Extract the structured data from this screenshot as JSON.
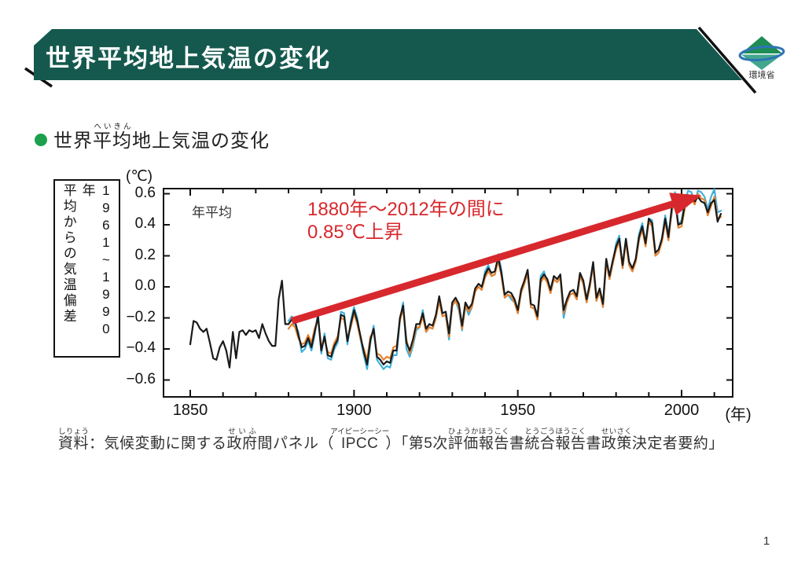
{
  "page_number": "1",
  "banner": {
    "title": "世界平均地上気温の変化"
  },
  "logo": {
    "label": "環境省"
  },
  "heading": {
    "segments": [
      {
        "t": "世界"
      },
      {
        "t": "平均",
        "r": "へいきん"
      },
      {
        "t": "地上気温の変化"
      }
    ]
  },
  "chart": {
    "unit_label": "(℃)",
    "period_label": "1961~1990年",
    "axis_label": "平均からの気温偏差",
    "inner_label": "年平均",
    "x_unit": "(年)",
    "y_tick_labels": [
      "0.6",
      "0.4",
      "0.2",
      "0.0",
      "−0.2",
      "−0.4",
      "−0.6"
    ],
    "x_tick_labels": [
      "1850",
      "1900",
      "1950",
      "2000"
    ]
  },
  "chart_data": {
    "type": "line",
    "title": "世界平均地上気温の変化",
    "xlabel": "(年)",
    "ylabel": "1961~1990年平均からの気温偏差 (℃)",
    "x_range": [
      1842,
      2015
    ],
    "y_range": [
      -0.7,
      0.65
    ],
    "x_major_ticks": [
      1850,
      1900,
      1950,
      2000
    ],
    "x_minor_tick_step": 10,
    "y_ticks": [
      0.6,
      0.4,
      0.2,
      0.0,
      -0.2,
      -0.4,
      -0.6
    ],
    "grid": false,
    "legend": false,
    "annotation": {
      "line1": "1880年〜2012年の間に",
      "line2": "0.85℃上昇"
    },
    "arrow": {
      "from": [
        1881,
        -0.22
      ],
      "to": [
        2006,
        0.59
      ]
    },
    "series": [
      {
        "name": "annual-mean-dataset-black",
        "color": "#1a1a1a",
        "start_year": 1850,
        "values": [
          -0.37,
          -0.22,
          -0.23,
          -0.27,
          -0.29,
          -0.27,
          -0.36,
          -0.46,
          -0.47,
          -0.39,
          -0.35,
          -0.41,
          -0.52,
          -0.29,
          -0.46,
          -0.29,
          -0.28,
          -0.31,
          -0.28,
          -0.29,
          -0.28,
          -0.33,
          -0.24,
          -0.3,
          -0.35,
          -0.38,
          -0.38,
          -0.08,
          0.04,
          -0.24,
          -0.24,
          -0.21,
          -0.22,
          -0.31,
          -0.39,
          -0.38,
          -0.33,
          -0.39,
          -0.29,
          -0.19,
          -0.41,
          -0.32,
          -0.44,
          -0.45,
          -0.38,
          -0.34,
          -0.18,
          -0.19,
          -0.35,
          -0.24,
          -0.15,
          -0.22,
          -0.32,
          -0.42,
          -0.5,
          -0.34,
          -0.27,
          -0.45,
          -0.47,
          -0.5,
          -0.48,
          -0.49,
          -0.41,
          -0.41,
          -0.2,
          -0.12,
          -0.36,
          -0.41,
          -0.34,
          -0.24,
          -0.24,
          -0.17,
          -0.27,
          -0.24,
          -0.25,
          -0.18,
          -0.06,
          -0.17,
          -0.16,
          -0.3,
          -0.1,
          -0.07,
          -0.11,
          -0.25,
          -0.1,
          -0.14,
          -0.11,
          -0.01,
          0.02,
          0.0,
          0.08,
          0.12,
          0.09,
          0.1,
          0.19,
          0.09,
          -0.05,
          -0.03,
          -0.04,
          -0.08,
          -0.15,
          -0.02,
          0.04,
          0.11,
          -0.11,
          -0.12,
          -0.19,
          0.05,
          0.08,
          0.05,
          -0.02,
          0.07,
          0.05,
          0.08,
          -0.15,
          -0.08,
          -0.03,
          -0.02,
          -0.06,
          0.09,
          0.04,
          -0.08,
          0.02,
          0.16,
          -0.07,
          -0.01,
          -0.11,
          0.18,
          0.07,
          0.17,
          0.26,
          0.31,
          0.14,
          0.31,
          0.16,
          0.12,
          0.18,
          0.32,
          0.39,
          0.28,
          0.44,
          0.41,
          0.22,
          0.24,
          0.31,
          0.44,
          0.32,
          0.51,
          0.55,
          0.4,
          0.41,
          0.53,
          0.58,
          0.59,
          0.55,
          0.58,
          0.55,
          0.54,
          0.48,
          0.54,
          0.56,
          0.42,
          0.47
        ]
      },
      {
        "name": "annual-mean-dataset-orange",
        "color": "#e8822f",
        "start_year": 1880,
        "values": [
          -0.27,
          -0.24,
          -0.26,
          -0.33,
          -0.37,
          -0.36,
          -0.31,
          -0.36,
          -0.27,
          -0.21,
          -0.38,
          -0.34,
          -0.42,
          -0.43,
          -0.36,
          -0.32,
          -0.2,
          -0.21,
          -0.33,
          -0.26,
          -0.17,
          -0.24,
          -0.34,
          -0.4,
          -0.47,
          -0.32,
          -0.29,
          -0.43,
          -0.44,
          -0.47,
          -0.45,
          -0.46,
          -0.39,
          -0.38,
          -0.22,
          -0.14,
          -0.34,
          -0.43,
          -0.36,
          -0.26,
          -0.26,
          -0.19,
          -0.29,
          -0.26,
          -0.27,
          -0.2,
          -0.09,
          -0.19,
          -0.18,
          -0.32,
          -0.12,
          -0.09,
          -0.13,
          -0.27,
          -0.12,
          -0.16,
          -0.13,
          -0.03,
          0.0,
          -0.02,
          0.06,
          0.1,
          0.07,
          0.08,
          0.17,
          0.07,
          -0.07,
          -0.05,
          -0.06,
          -0.1,
          -0.17,
          -0.04,
          0.02,
          0.09,
          -0.13,
          -0.14,
          -0.21,
          0.03,
          0.06,
          0.03,
          -0.04,
          0.05,
          0.03,
          0.06,
          -0.17,
          -0.1,
          -0.05,
          -0.04,
          -0.08,
          0.07,
          0.02,
          -0.1,
          0.0,
          0.14,
          -0.09,
          -0.03,
          -0.13,
          0.16,
          0.05,
          0.15,
          0.24,
          0.29,
          0.12,
          0.29,
          0.14,
          0.1,
          0.16,
          0.3,
          0.37,
          0.26,
          0.42,
          0.39,
          0.2,
          0.22,
          0.29,
          0.42,
          0.3,
          0.49,
          0.57,
          0.38,
          0.39,
          0.51,
          0.56,
          0.57,
          0.53,
          0.6,
          0.57,
          0.56,
          0.46,
          0.52,
          0.58,
          0.44,
          0.45
        ]
      },
      {
        "name": "annual-mean-dataset-cyan",
        "color": "#41b1dc",
        "start_year": 1880,
        "values": [
          -0.22,
          -0.19,
          -0.24,
          -0.29,
          -0.42,
          -0.4,
          -0.35,
          -0.41,
          -0.31,
          -0.17,
          -0.43,
          -0.3,
          -0.46,
          -0.47,
          -0.4,
          -0.36,
          -0.16,
          -0.17,
          -0.37,
          -0.22,
          -0.13,
          -0.2,
          -0.34,
          -0.44,
          -0.53,
          -0.36,
          -0.25,
          -0.47,
          -0.5,
          -0.53,
          -0.51,
          -0.52,
          -0.44,
          -0.44,
          -0.22,
          -0.1,
          -0.4,
          -0.45,
          -0.38,
          -0.28,
          -0.26,
          -0.15,
          -0.29,
          -0.26,
          -0.27,
          -0.2,
          -0.08,
          -0.19,
          -0.18,
          -0.34,
          -0.12,
          -0.09,
          -0.15,
          -0.28,
          -0.12,
          -0.18,
          -0.13,
          -0.01,
          0.0,
          -0.02,
          0.1,
          0.14,
          0.07,
          0.08,
          0.21,
          0.11,
          -0.07,
          -0.05,
          -0.08,
          -0.1,
          -0.17,
          -0.04,
          0.02,
          0.09,
          -0.13,
          -0.14,
          -0.21,
          0.07,
          0.1,
          0.03,
          -0.04,
          0.05,
          0.03,
          0.06,
          -0.2,
          -0.1,
          -0.05,
          -0.04,
          -0.08,
          0.07,
          0.02,
          -0.1,
          0.0,
          0.14,
          -0.09,
          -0.03,
          -0.13,
          0.18,
          0.05,
          0.15,
          0.28,
          0.33,
          0.12,
          0.31,
          0.14,
          0.1,
          0.18,
          0.34,
          0.41,
          0.28,
          0.44,
          0.43,
          0.22,
          0.24,
          0.31,
          0.46,
          0.34,
          0.47,
          0.61,
          0.4,
          0.43,
          0.55,
          0.62,
          0.61,
          0.54,
          0.62,
          0.61,
          0.58,
          0.5,
          0.58,
          0.63,
          0.48,
          0.49
        ]
      }
    ]
  },
  "source": {
    "segments": [
      {
        "t": "資料",
        "r": "しりょう"
      },
      {
        "t": "：気候変動に関する"
      },
      {
        "t": "政府",
        "r": "せいふ"
      },
      {
        "t": "間パネル（"
      },
      {
        "t": "IPCC",
        "r": "アイピーシーシー"
      },
      {
        "t": "）「第5次"
      },
      {
        "t": "評価",
        "r": "ひょうか"
      },
      {
        "t": "報告",
        "r": "ほうこく"
      },
      {
        "t": "書"
      },
      {
        "t": "統合報告",
        "r": "とうごうほうこく"
      },
      {
        "t": "書"
      },
      {
        "t": "政策",
        "r": "せいさく"
      },
      {
        "t": "決定者要約」"
      }
    ]
  },
  "colors": {
    "banner_bg": "#15594e",
    "bullet": "#1ca04e",
    "annotation_red": "#d7282d",
    "frame": "#111111"
  }
}
